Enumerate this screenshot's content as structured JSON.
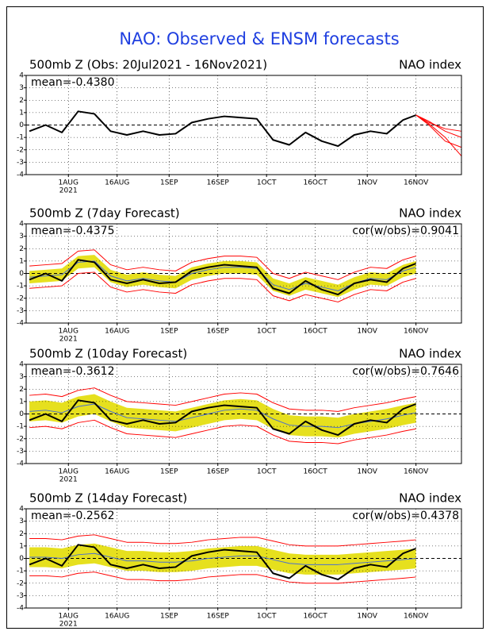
{
  "title": "NAO: Observed & ENSM forecasts",
  "chart_data": [
    {
      "type": "line",
      "title": "500mb Z (Obs: 20Jul2021 - 16Nov2021)",
      "subtitle": "NAO index",
      "annotations": [
        "mean=-0.4380"
      ],
      "x": [
        "2021-07-20",
        "2021-07-25",
        "2021-07-30",
        "2021-08-04",
        "2021-08-09",
        "2021-08-14",
        "2021-08-19",
        "2021-08-24",
        "2021-08-29",
        "2021-09-03",
        "2021-09-08",
        "2021-09-13",
        "2021-09-18",
        "2021-09-23",
        "2021-09-28",
        "2021-10-03",
        "2021-10-08",
        "2021-10-13",
        "2021-10-18",
        "2021-10-23",
        "2021-10-28",
        "2021-11-02",
        "2021-11-07",
        "2021-11-12",
        "2021-11-16"
      ],
      "xlim": [
        "2021-07-19",
        "2021-11-30"
      ],
      "xticks": [
        {
          "value": "2021-08-01",
          "label": "1AUG"
        },
        {
          "value": "2021-08-16",
          "label": "16AUG"
        },
        {
          "value": "2021-09-01",
          "label": "1SEP"
        },
        {
          "value": "2021-09-16",
          "label": "16SEP"
        },
        {
          "value": "2021-10-01",
          "label": "1OCT"
        },
        {
          "value": "2021-10-16",
          "label": "16OCT"
        },
        {
          "value": "2021-11-01",
          "label": "1NOV"
        },
        {
          "value": "2021-11-16",
          "label": "16NOV"
        }
      ],
      "year_label": "2021",
      "ylim": [
        -4,
        4
      ],
      "yticks": [
        -4,
        -3,
        -2,
        -1,
        0,
        1,
        2,
        3,
        4
      ],
      "grid": true,
      "series": [
        {
          "color": "#000000",
          "values": [
            -0.5,
            0,
            -0.6,
            1.1,
            0.9,
            -0.5,
            -0.8,
            -0.5,
            -0.8,
            -0.7,
            0.2,
            0.5,
            0.7,
            0.6,
            0.5,
            -1.2,
            -1.6,
            -0.6,
            -1.3,
            -1.7,
            -0.8,
            -0.5,
            -0.7,
            0.4,
            0.8
          ]
        },
        {
          "color": "#ff0000",
          "x": [
            "2021-11-16",
            "2021-11-20",
            "2021-11-25",
            "2021-11-30"
          ],
          "values": [
            0.8,
            0.3,
            -0.5,
            -1.0
          ]
        },
        {
          "color": "#ff0000",
          "x": [
            "2021-11-16",
            "2021-11-20",
            "2021-11-25",
            "2021-11-30"
          ],
          "values": [
            0.8,
            0.1,
            -1.0,
            -2.5
          ]
        },
        {
          "color": "#ff0000",
          "x": [
            "2021-11-16",
            "2021-11-20",
            "2021-11-25",
            "2021-11-30"
          ],
          "values": [
            0.8,
            0.2,
            -0.3,
            -0.5
          ]
        },
        {
          "color": "#ff0000",
          "x": [
            "2021-11-16",
            "2021-11-20",
            "2021-11-25",
            "2021-11-30"
          ],
          "values": [
            0.8,
            0.0,
            -1.3,
            -1.8
          ]
        }
      ]
    },
    {
      "type": "line",
      "title": "500mb Z (7day Forecast)",
      "subtitle": "NAO index",
      "annotations": [
        "mean=-0.4375",
        "cor(w/obs)=0.9041"
      ],
      "x": [
        "2021-07-20",
        "2021-07-25",
        "2021-07-30",
        "2021-08-04",
        "2021-08-09",
        "2021-08-14",
        "2021-08-19",
        "2021-08-24",
        "2021-08-29",
        "2021-09-03",
        "2021-09-08",
        "2021-09-13",
        "2021-09-18",
        "2021-09-23",
        "2021-09-28",
        "2021-10-03",
        "2021-10-08",
        "2021-10-13",
        "2021-10-18",
        "2021-10-23",
        "2021-10-28",
        "2021-11-02",
        "2021-11-07",
        "2021-11-12",
        "2021-11-16"
      ],
      "xlim": [
        "2021-07-19",
        "2021-11-30"
      ],
      "xticks": [
        {
          "value": "2021-08-01",
          "label": "1AUG"
        },
        {
          "value": "2021-08-16",
          "label": "16AUG"
        },
        {
          "value": "2021-09-01",
          "label": "1SEP"
        },
        {
          "value": "2021-09-16",
          "label": "16SEP"
        },
        {
          "value": "2021-10-01",
          "label": "1OCT"
        },
        {
          "value": "2021-10-16",
          "label": "16OCT"
        },
        {
          "value": "2021-11-01",
          "label": "1NOV"
        },
        {
          "value": "2021-11-16",
          "label": "16NOV"
        }
      ],
      "year_label": "2021",
      "ylim": [
        -4,
        4
      ],
      "yticks": [
        -4,
        -3,
        -2,
        -1,
        0,
        1,
        2,
        3,
        4
      ],
      "grid": true,
      "band": {
        "color": "#e6e01e",
        "upper": [
          0.2,
          0.3,
          0.4,
          1.4,
          1.5,
          0.3,
          -0.1,
          0.1,
          -0.1,
          -0.2,
          0.5,
          0.8,
          1.0,
          1.0,
          0.9,
          -0.4,
          -0.8,
          -0.3,
          -0.6,
          -0.9,
          -0.3,
          0.1,
          0,
          0.7,
          1.0
        ],
        "lower": [
          -0.8,
          -0.7,
          -0.6,
          0.4,
          0.5,
          -0.7,
          -1.1,
          -0.9,
          -1.1,
          -1.2,
          -0.5,
          -0.2,
          0,
          0,
          -0.1,
          -1.4,
          -1.8,
          -1.3,
          -1.6,
          -1.9,
          -1.3,
          -0.9,
          -1.0,
          -0.3,
          0
        ]
      },
      "series": [
        {
          "color": "#ff0000",
          "values": [
            0.6,
            0.7,
            0.8,
            1.8,
            1.9,
            0.7,
            0.3,
            0.5,
            0.3,
            0.2,
            0.9,
            1.2,
            1.4,
            1.4,
            1.3,
            0,
            -0.4,
            0.1,
            -0.2,
            -0.5,
            0.1,
            0.5,
            0.4,
            1.1,
            1.4
          ]
        },
        {
          "color": "#ff0000",
          "values": [
            -1.2,
            -1.1,
            -1.0,
            0,
            0.1,
            -1.1,
            -1.5,
            -1.3,
            -1.5,
            -1.6,
            -0.9,
            -0.6,
            -0.4,
            -0.4,
            -0.5,
            -1.8,
            -2.2,
            -1.7,
            -2.0,
            -2.3,
            -1.7,
            -1.3,
            -1.4,
            -0.7,
            -0.4
          ]
        },
        {
          "color": "#4a6fd0",
          "values": [
            -0.3,
            -0.2,
            -0.1,
            0.9,
            1.0,
            -0.2,
            -0.6,
            -0.4,
            -0.6,
            -0.7,
            0.0,
            0.3,
            0.5,
            0.5,
            0.4,
            -0.9,
            -1.3,
            -0.8,
            -1.1,
            -1.4,
            -0.8,
            -0.4,
            -0.5,
            0.2,
            0.5
          ]
        },
        {
          "color": "#000000",
          "values": [
            -0.5,
            0,
            -0.6,
            1.1,
            0.9,
            -0.5,
            -0.8,
            -0.5,
            -0.8,
            -0.7,
            0.2,
            0.5,
            0.7,
            0.6,
            0.5,
            -1.2,
            -1.6,
            -0.6,
            -1.3,
            -1.7,
            -0.8,
            -0.5,
            -0.7,
            0.4,
            0.8
          ]
        }
      ]
    },
    {
      "type": "line",
      "title": "500mb Z (10day Forecast)",
      "subtitle": "NAO index",
      "annotations": [
        "mean=-0.3612",
        "cor(w/obs)=0.7646"
      ],
      "x": [
        "2021-07-20",
        "2021-07-25",
        "2021-07-30",
        "2021-08-04",
        "2021-08-09",
        "2021-08-14",
        "2021-08-19",
        "2021-08-24",
        "2021-08-29",
        "2021-09-03",
        "2021-09-08",
        "2021-09-13",
        "2021-09-18",
        "2021-09-23",
        "2021-09-28",
        "2021-10-03",
        "2021-10-08",
        "2021-10-13",
        "2021-10-18",
        "2021-10-23",
        "2021-10-28",
        "2021-11-02",
        "2021-11-07",
        "2021-11-12",
        "2021-11-16"
      ],
      "xlim": [
        "2021-07-19",
        "2021-11-30"
      ],
      "xticks": [
        {
          "value": "2021-08-01",
          "label": "1AUG"
        },
        {
          "value": "2021-08-16",
          "label": "16AUG"
        },
        {
          "value": "2021-09-01",
          "label": "1SEP"
        },
        {
          "value": "2021-09-16",
          "label": "16SEP"
        },
        {
          "value": "2021-10-01",
          "label": "1OCT"
        },
        {
          "value": "2021-10-16",
          "label": "16OCT"
        },
        {
          "value": "2021-11-01",
          "label": "1NOV"
        },
        {
          "value": "2021-11-16",
          "label": "16NOV"
        }
      ],
      "year_label": "2021",
      "ylim": [
        -4,
        4
      ],
      "yticks": [
        -4,
        -3,
        -2,
        -1,
        0,
        1,
        2,
        3,
        4
      ],
      "grid": true,
      "band": {
        "color": "#e6e01e",
        "upper": [
          1.0,
          1.1,
          0.9,
          1.4,
          1.6,
          1.0,
          0.5,
          0.4,
          0.3,
          0.2,
          0.5,
          0.8,
          1.1,
          1.2,
          1.1,
          0.4,
          -0.1,
          -0.2,
          -0.2,
          -0.3,
          0,
          0.2,
          0.4,
          0.7,
          0.9
        ],
        "lower": [
          -0.6,
          -0.5,
          -0.7,
          -0.2,
          0,
          -0.6,
          -1.1,
          -1.2,
          -1.3,
          -1.4,
          -1.1,
          -0.8,
          -0.5,
          -0.4,
          -0.5,
          -1.2,
          -1.7,
          -1.8,
          -1.8,
          -1.9,
          -1.6,
          -1.4,
          -1.2,
          -0.9,
          -0.7
        ]
      },
      "series": [
        {
          "color": "#ff0000",
          "values": [
            1.5,
            1.6,
            1.4,
            1.9,
            2.1,
            1.5,
            1.0,
            0.9,
            0.8,
            0.7,
            1.0,
            1.3,
            1.6,
            1.7,
            1.6,
            0.9,
            0.4,
            0.3,
            0.3,
            0.2,
            0.5,
            0.7,
            0.9,
            1.2,
            1.4
          ]
        },
        {
          "color": "#ff0000",
          "values": [
            -1.1,
            -1.0,
            -1.2,
            -0.7,
            -0.5,
            -1.1,
            -1.6,
            -1.7,
            -1.8,
            -1.9,
            -1.6,
            -1.3,
            -1.0,
            -0.9,
            -1.0,
            -1.7,
            -2.2,
            -2.3,
            -2.3,
            -2.4,
            -2.1,
            -1.9,
            -1.7,
            -1.4,
            -1.2
          ]
        },
        {
          "color": "#4a6fd0",
          "values": [
            0.2,
            0.3,
            0.1,
            0.6,
            0.8,
            0.2,
            -0.3,
            -0.4,
            -0.5,
            -0.6,
            -0.3,
            0.0,
            0.3,
            0.4,
            0.3,
            -0.4,
            -0.9,
            -1.0,
            -1.0,
            -1.1,
            -0.8,
            -0.6,
            -0.4,
            -0.1,
            0.1
          ]
        },
        {
          "color": "#000000",
          "values": [
            -0.5,
            0,
            -0.6,
            1.1,
            0.9,
            -0.5,
            -0.8,
            -0.5,
            -0.8,
            -0.7,
            0.2,
            0.5,
            0.7,
            0.6,
            0.5,
            -1.2,
            -1.6,
            -0.6,
            -1.3,
            -1.7,
            -0.8,
            -0.5,
            -0.7,
            0.4,
            0.8
          ]
        }
      ]
    },
    {
      "type": "line",
      "title": "500mb Z (14day Forecast)",
      "subtitle": "NAO index",
      "annotations": [
        "mean=-0.2562",
        "cor(w/obs)=0.4378"
      ],
      "x": [
        "2021-07-20",
        "2021-07-25",
        "2021-07-30",
        "2021-08-04",
        "2021-08-09",
        "2021-08-14",
        "2021-08-19",
        "2021-08-24",
        "2021-08-29",
        "2021-09-03",
        "2021-09-08",
        "2021-09-13",
        "2021-09-18",
        "2021-09-23",
        "2021-09-28",
        "2021-10-03",
        "2021-10-08",
        "2021-10-13",
        "2021-10-18",
        "2021-10-23",
        "2021-10-28",
        "2021-11-02",
        "2021-11-07",
        "2021-11-12",
        "2021-11-16"
      ],
      "xlim": [
        "2021-07-19",
        "2021-11-30"
      ],
      "xticks": [
        {
          "value": "2021-08-01",
          "label": "1AUG"
        },
        {
          "value": "2021-08-16",
          "label": "16AUG"
        },
        {
          "value": "2021-09-01",
          "label": "1SEP"
        },
        {
          "value": "2021-09-16",
          "label": "16SEP"
        },
        {
          "value": "2021-10-01",
          "label": "1OCT"
        },
        {
          "value": "2021-10-16",
          "label": "16OCT"
        },
        {
          "value": "2021-11-01",
          "label": "1NOV"
        },
        {
          "value": "2021-11-16",
          "label": "16NOV"
        }
      ],
      "year_label": "2021",
      "ylim": [
        -4,
        4
      ],
      "yticks": [
        -4,
        -3,
        -2,
        -1,
        0,
        1,
        2,
        3,
        4
      ],
      "grid": true,
      "band": {
        "color": "#e6e01e",
        "upper": [
          0.9,
          0.9,
          0.8,
          1.1,
          1.2,
          0.9,
          0.6,
          0.6,
          0.5,
          0.5,
          0.6,
          0.8,
          0.9,
          1.0,
          1.0,
          0.7,
          0.4,
          0.3,
          0.3,
          0.3,
          0.4,
          0.5,
          0.6,
          0.7,
          0.8
        ],
        "lower": [
          -0.7,
          -0.7,
          -0.8,
          -0.5,
          -0.4,
          -0.7,
          -1.0,
          -1.0,
          -1.1,
          -1.1,
          -1.0,
          -0.8,
          -0.7,
          -0.6,
          -0.6,
          -0.9,
          -1.2,
          -1.3,
          -1.3,
          -1.3,
          -1.2,
          -1.1,
          -1.0,
          -0.9,
          -0.8
        ]
      },
      "series": [
        {
          "color": "#ff0000",
          "values": [
            1.6,
            1.6,
            1.5,
            1.8,
            1.9,
            1.6,
            1.3,
            1.3,
            1.2,
            1.2,
            1.3,
            1.5,
            1.6,
            1.7,
            1.7,
            1.4,
            1.1,
            1.0,
            1.0,
            1.0,
            1.1,
            1.2,
            1.3,
            1.4,
            1.5
          ]
        },
        {
          "color": "#ff0000",
          "values": [
            -1.4,
            -1.4,
            -1.5,
            -1.2,
            -1.1,
            -1.4,
            -1.7,
            -1.7,
            -1.8,
            -1.8,
            -1.7,
            -1.5,
            -1.4,
            -1.3,
            -1.3,
            -1.6,
            -1.9,
            -2.0,
            -2.0,
            -2.0,
            -1.9,
            -1.8,
            -1.7,
            -1.6,
            -1.5
          ]
        },
        {
          "color": "#4a6fd0",
          "values": [
            0.1,
            0.1,
            0.0,
            0.3,
            0.4,
            0.1,
            -0.2,
            -0.2,
            -0.3,
            -0.3,
            -0.2,
            0.0,
            0.1,
            0.2,
            0.2,
            -0.1,
            -0.4,
            -0.5,
            -0.5,
            -0.5,
            -0.4,
            -0.3,
            -0.2,
            -0.1,
            0.0
          ]
        },
        {
          "color": "#000000",
          "values": [
            -0.5,
            0,
            -0.6,
            1.1,
            0.9,
            -0.5,
            -0.8,
            -0.5,
            -0.8,
            -0.7,
            0.2,
            0.5,
            0.7,
            0.6,
            0.5,
            -1.2,
            -1.6,
            -0.6,
            -1.3,
            -1.7,
            -0.8,
            -0.5,
            -0.7,
            0.4,
            0.8
          ]
        }
      ]
    }
  ]
}
